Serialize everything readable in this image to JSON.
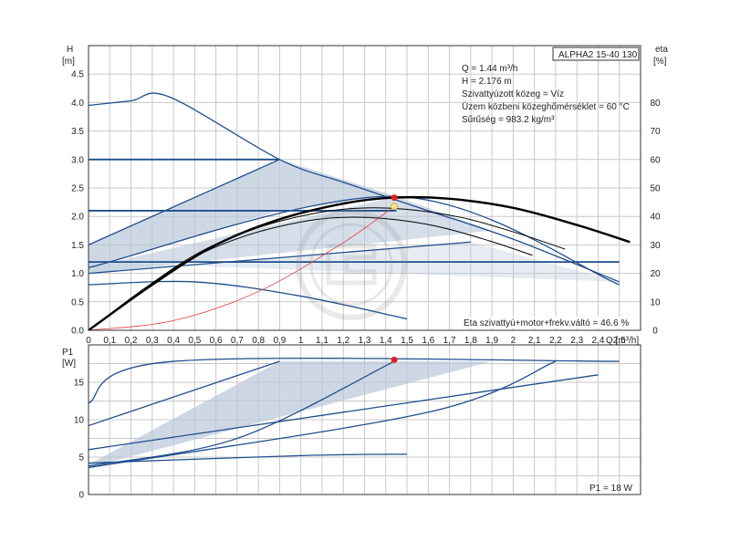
{
  "chart_data": [
    {
      "type": "line",
      "title": "ALPHA2 15-40 130",
      "info": [
        "Q = 1.44 m³/h",
        "H = 2.176 m",
        "Szivattyúzott közeg = Víz",
        "Üzem közbeni közeghőmérséklet = 60 °C",
        "Sűrűség = 983.2 kg/m³"
      ],
      "ylabel": "H",
      "yunit": "[m]",
      "y2label": "eta",
      "y2unit": "[%]",
      "xlabel": "Q [m³/h]",
      "xlim": [
        0,
        2.6
      ],
      "ylim": [
        0,
        5
      ],
      "y2lim": [
        0,
        100
      ],
      "xticks": [
        "0",
        "0,1",
        "0,2",
        "0,3",
        "0,4",
        "0,5",
        "0,6",
        "0,7",
        "0,8",
        "0,9",
        "1",
        "1,1",
        "1,2",
        "1,3",
        "1,4",
        "1,5",
        "1,6",
        "1,7",
        "1,8",
        "1,9",
        "2",
        "2,1",
        "2,2",
        "2,3",
        "2,4",
        "2,5"
      ],
      "yticks": [
        "0.0",
        "0.5",
        "1.0",
        "1.5",
        "2.0",
        "2.5",
        "3.0",
        "3.5",
        "4.0",
        "4.5"
      ],
      "y2ticks": [
        "0",
        "10",
        "20",
        "30",
        "40",
        "50",
        "60",
        "70",
        "80"
      ],
      "efficiency_note": "Eta szivattyú+motor+frekv.váltó = 46.6 %",
      "duty_point": {
        "q": 1.44,
        "h": 2.176,
        "eta": 46.6
      },
      "series": [
        {
          "name": "max curve",
          "points": [
            [
              0,
              3.95
            ],
            [
              0.2,
              4.03
            ],
            [
              0.38,
              4.1
            ],
            [
              0.9,
              3.0
            ],
            [
              1.2,
              2.6
            ],
            [
              1.6,
              2.1
            ],
            [
              2.0,
              1.6
            ],
            [
              2.5,
              0.85
            ]
          ]
        },
        {
          "name": "constant pressure 3.0 m",
          "points": [
            [
              0,
              3.0
            ],
            [
              0.9,
              3.0
            ]
          ]
        },
        {
          "name": "constant pressure 2.1 m",
          "points": [
            [
              0,
              2.1
            ],
            [
              1.45,
              2.1
            ]
          ]
        },
        {
          "name": "constant pressure 1.2 m",
          "points": [
            [
              0,
              1.2
            ],
            [
              2.5,
              1.2
            ]
          ]
        },
        {
          "name": "proportional pressure upper",
          "points": [
            [
              0,
              1.5
            ],
            [
              0.9,
              3.0
            ]
          ]
        },
        {
          "name": "proportional pressure",
          "points": [
            [
              0,
              1.1
            ],
            [
              1.45,
              2.35
            ],
            [
              2.5,
              0.8
            ]
          ]
        },
        {
          "name": "proportional pressure lower",
          "points": [
            [
              0,
              1.0
            ],
            [
              1.8,
              1.55
            ]
          ]
        },
        {
          "name": "min curve",
          "points": [
            [
              0,
              0.8
            ],
            [
              0.5,
              0.85
            ],
            [
              1.0,
              0.6
            ],
            [
              1.5,
              0.2
            ]
          ]
        },
        {
          "name": "system curve",
          "points": [
            [
              0,
              0
            ],
            [
              0.4,
              0.17
            ],
            [
              0.8,
              0.68
            ],
            [
              1.2,
              1.54
            ],
            [
              1.44,
              2.176
            ]
          ]
        },
        {
          "name": "efficiency",
          "axis": "y2",
          "points": [
            [
              0,
              0
            ],
            [
              0.3,
              16
            ],
            [
              0.6,
              30
            ],
            [
              0.9,
              39
            ],
            [
              1.2,
              44.5
            ],
            [
              1.44,
              46.6
            ],
            [
              1.7,
              46.2
            ],
            [
              2.0,
              43
            ],
            [
              2.3,
              37
            ],
            [
              2.55,
              31
            ]
          ]
        }
      ]
    },
    {
      "type": "line",
      "ylabel": "P1",
      "yunit": "[W]",
      "xlim": [
        0,
        2.6
      ],
      "ylim": [
        0,
        20
      ],
      "yticks": [
        "0",
        "5",
        "10",
        "15"
      ],
      "p1_note": "P1 = 18 W",
      "duty_point": {
        "q": 1.44,
        "p1": 18
      },
      "series": [
        {
          "name": "max power",
          "points": [
            [
              0,
              12.2
            ],
            [
              0.4,
              17.8
            ],
            [
              2.5,
              17.8
            ]
          ]
        },
        {
          "name": "power upper",
          "points": [
            [
              0,
              9.2
            ],
            [
              0.9,
              17.8
            ]
          ]
        },
        {
          "name": "power duty",
          "points": [
            [
              0,
              3.8
            ],
            [
              0.7,
              7.5
            ],
            [
              1.44,
              17.8
            ]
          ]
        },
        {
          "name": "power mid",
          "points": [
            [
              0,
              6.0
            ],
            [
              1.2,
              11.0
            ],
            [
              2.4,
              16.0
            ]
          ]
        },
        {
          "name": "power lower",
          "points": [
            [
              0,
              3.6
            ],
            [
              1.6,
              11.0
            ],
            [
              2.2,
              17.8
            ]
          ]
        },
        {
          "name": "power min",
          "points": [
            [
              0,
              4.2
            ],
            [
              1.0,
              5.2
            ],
            [
              1.5,
              5.4
            ]
          ]
        }
      ]
    }
  ]
}
